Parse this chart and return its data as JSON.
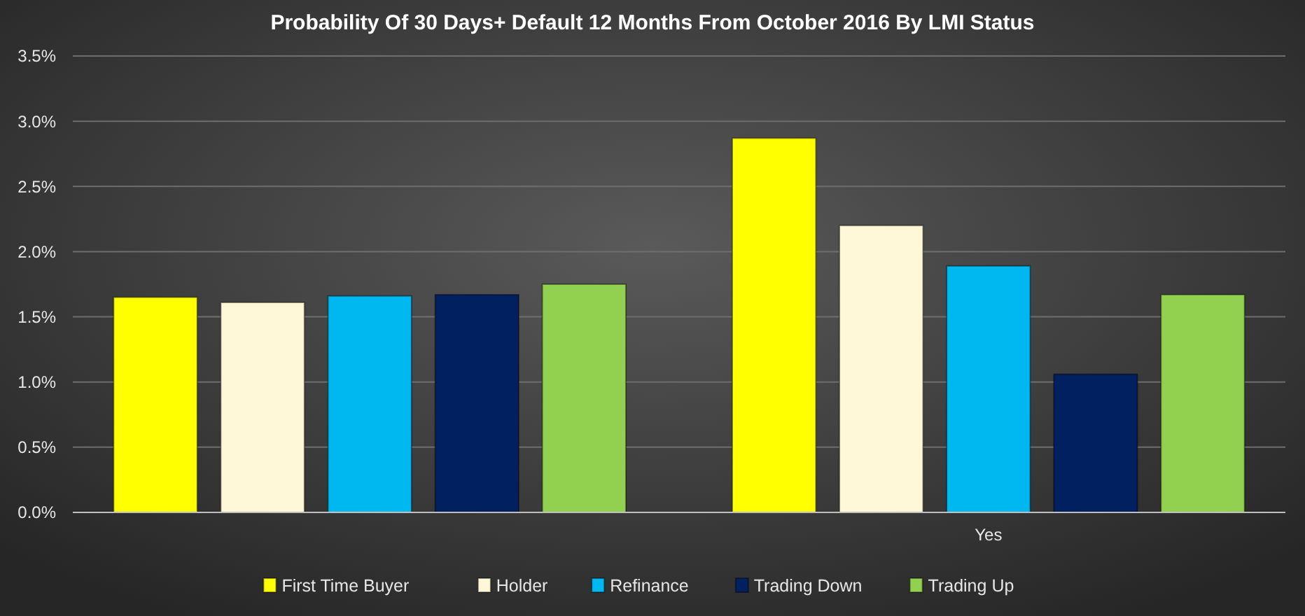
{
  "chart_data": {
    "type": "bar",
    "title": "Probability  Of 30 Days+ Default 12 Months From October 2016 By LMI Status",
    "categories": [
      null,
      "Yes"
    ],
    "series": [
      {
        "name": "First Time Buyer",
        "color": "#ffff00",
        "values": [
          1.65,
          2.87
        ]
      },
      {
        "name": "Holder",
        "color": "#fff8d8",
        "values": [
          1.61,
          2.2
        ]
      },
      {
        "name": "Refinance",
        "color": "#00b8f0",
        "values": [
          1.66,
          1.89
        ]
      },
      {
        "name": "Trading Down",
        "color": "#002060",
        "values": [
          1.67,
          1.06
        ]
      },
      {
        "name": "Trading Up",
        "color": "#92d050",
        "values": [
          1.75,
          1.67
        ]
      }
    ],
    "ylim": [
      0,
      3.5
    ],
    "yticks": [
      {
        "value": 0,
        "label": "0.0%"
      },
      {
        "value": 0.5,
        "label": "0.5%"
      },
      {
        "value": 1,
        "label": "1.0%"
      },
      {
        "value": 1.5,
        "label": "1.5%"
      },
      {
        "value": 2,
        "label": "2.0%"
      },
      {
        "value": 2.5,
        "label": "2.5%"
      },
      {
        "value": 3,
        "label": "3.0%"
      },
      {
        "value": 3.5,
        "label": "3.5%"
      }
    ],
    "grid": "y",
    "legend": "bottom"
  }
}
